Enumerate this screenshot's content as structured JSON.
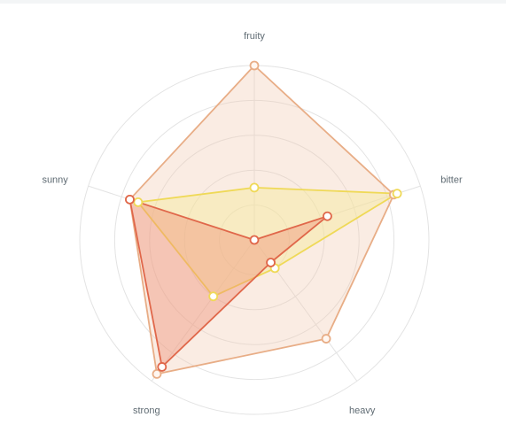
{
  "chart_data": {
    "type": "radar",
    "axes": [
      "fruity",
      "bitter",
      "heavy",
      "strong",
      "sunny"
    ],
    "rmax": 5,
    "grid": true,
    "rings": 5,
    "series": [
      {
        "values": [
          5.0,
          4.2,
          3.5,
          4.75,
          3.75
        ],
        "stroke": "#e8ad86",
        "fill": "#f1cdb6",
        "fill_opacity": 0.38,
        "marker_fill": "#fff6f0"
      },
      {
        "values": [
          1.5,
          4.3,
          1.0,
          2.0,
          3.5
        ],
        "stroke": "#efd957",
        "fill": "#f6ea98",
        "fill_opacity": 0.45,
        "marker_fill": "#ffffff"
      },
      {
        "values": [
          0.0,
          2.2,
          0.8,
          4.5,
          3.75
        ],
        "stroke": "#e0674a",
        "fill": "#ef9074",
        "fill_opacity": 0.42,
        "marker_fill": "#ffffff"
      }
    ]
  }
}
